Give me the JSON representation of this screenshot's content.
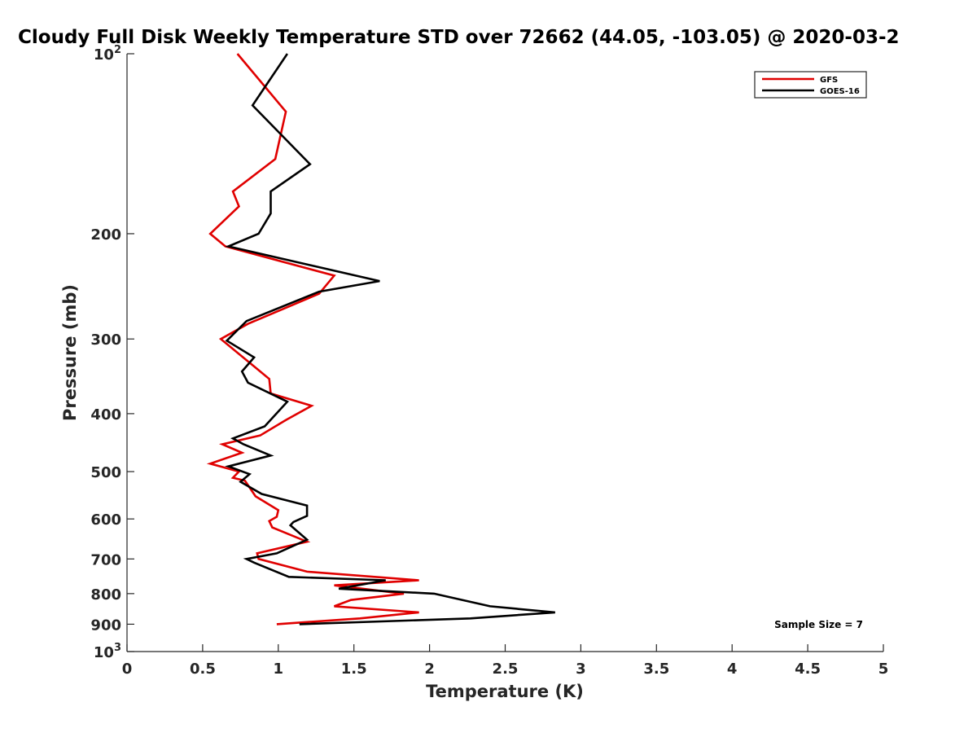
{
  "chart_data": {
    "type": "line",
    "title": "Cloudy Full Disk Weekly Temperature STD over 72662 (44.05, -103.05) @ 2020-03-2",
    "xlabel": "Temperature (K)",
    "ylabel": "Pressure (mb)",
    "xlim": [
      0,
      5
    ],
    "ylim": [
      1000,
      100
    ],
    "yscale": "log",
    "y_reversed": true,
    "grid": false,
    "legend_position": "top-right",
    "x_ticks": [
      "0",
      "0.5",
      "1",
      "1.5",
      "2",
      "2.5",
      "3",
      "3.5",
      "4",
      "4.5",
      "5"
    ],
    "y_ticks": [
      {
        "value": 100,
        "label": "10",
        "sup": "2"
      },
      {
        "value": 200,
        "label": "200",
        "sup": ""
      },
      {
        "value": 300,
        "label": "300",
        "sup": ""
      },
      {
        "value": 400,
        "label": "400",
        "sup": ""
      },
      {
        "value": 500,
        "label": "500",
        "sup": ""
      },
      {
        "value": 600,
        "label": "600",
        "sup": ""
      },
      {
        "value": 700,
        "label": "700",
        "sup": ""
      },
      {
        "value": 800,
        "label": "800",
        "sup": ""
      },
      {
        "value": 900,
        "label": "900",
        "sup": ""
      },
      {
        "value": 1000,
        "label": "10",
        "sup": "3"
      }
    ],
    "series": [
      {
        "name": "GFS",
        "color": "#e00000",
        "points": [
          [
            0.73,
            100
          ],
          [
            1.05,
            125
          ],
          [
            0.98,
            150
          ],
          [
            0.7,
            170
          ],
          [
            0.74,
            180
          ],
          [
            0.55,
            200
          ],
          [
            0.65,
            210
          ],
          [
            1.37,
            235
          ],
          [
            1.27,
            252
          ],
          [
            0.8,
            283
          ],
          [
            0.62,
            300
          ],
          [
            0.85,
            335
          ],
          [
            0.94,
            350
          ],
          [
            0.95,
            370
          ],
          [
            1.22,
            388
          ],
          [
            1.05,
            410
          ],
          [
            0.88,
            435
          ],
          [
            0.63,
            450
          ],
          [
            0.76,
            465
          ],
          [
            0.55,
            485
          ],
          [
            0.74,
            500
          ],
          [
            0.7,
            512
          ],
          [
            0.78,
            518
          ],
          [
            0.85,
            550
          ],
          [
            1.0,
            580
          ],
          [
            0.99,
            595
          ],
          [
            0.94,
            605
          ],
          [
            0.96,
            620
          ],
          [
            1.19,
            655
          ],
          [
            0.86,
            685
          ],
          [
            0.87,
            700
          ],
          [
            1.19,
            735
          ],
          [
            1.93,
            760
          ],
          [
            1.37,
            775
          ],
          [
            1.83,
            800
          ],
          [
            1.48,
            820
          ],
          [
            1.37,
            840
          ],
          [
            1.93,
            860
          ],
          [
            1.54,
            880
          ],
          [
            0.99,
            900
          ]
        ]
      },
      {
        "name": "GOES-16",
        "color": "#000000",
        "points": [
          [
            1.06,
            100
          ],
          [
            0.83,
            122
          ],
          [
            1.21,
            153
          ],
          [
            0.95,
            170
          ],
          [
            0.95,
            185
          ],
          [
            0.87,
            200
          ],
          [
            0.67,
            210
          ],
          [
            1.67,
            240
          ],
          [
            1.27,
            250
          ],
          [
            0.79,
            280
          ],
          [
            0.66,
            302
          ],
          [
            0.84,
            322
          ],
          [
            0.76,
            340
          ],
          [
            0.8,
            355
          ],
          [
            1.06,
            382
          ],
          [
            0.91,
            420
          ],
          [
            0.7,
            440
          ],
          [
            0.77,
            450
          ],
          [
            0.95,
            470
          ],
          [
            0.67,
            490
          ],
          [
            0.81,
            505
          ],
          [
            0.75,
            520
          ],
          [
            0.89,
            545
          ],
          [
            1.19,
            570
          ],
          [
            1.19,
            593
          ],
          [
            1.1,
            607
          ],
          [
            1.08,
            615
          ],
          [
            1.19,
            650
          ],
          [
            0.99,
            685
          ],
          [
            0.79,
            700
          ],
          [
            0.84,
            710
          ],
          [
            1.07,
            750
          ],
          [
            1.71,
            760
          ],
          [
            1.4,
            785
          ],
          [
            2.03,
            800
          ],
          [
            2.4,
            840
          ],
          [
            2.83,
            860
          ],
          [
            2.27,
            880
          ],
          [
            1.14,
            900
          ]
        ]
      }
    ],
    "annotations": [
      {
        "text": "Sample Size = 7",
        "position": "bottom-right"
      }
    ]
  }
}
